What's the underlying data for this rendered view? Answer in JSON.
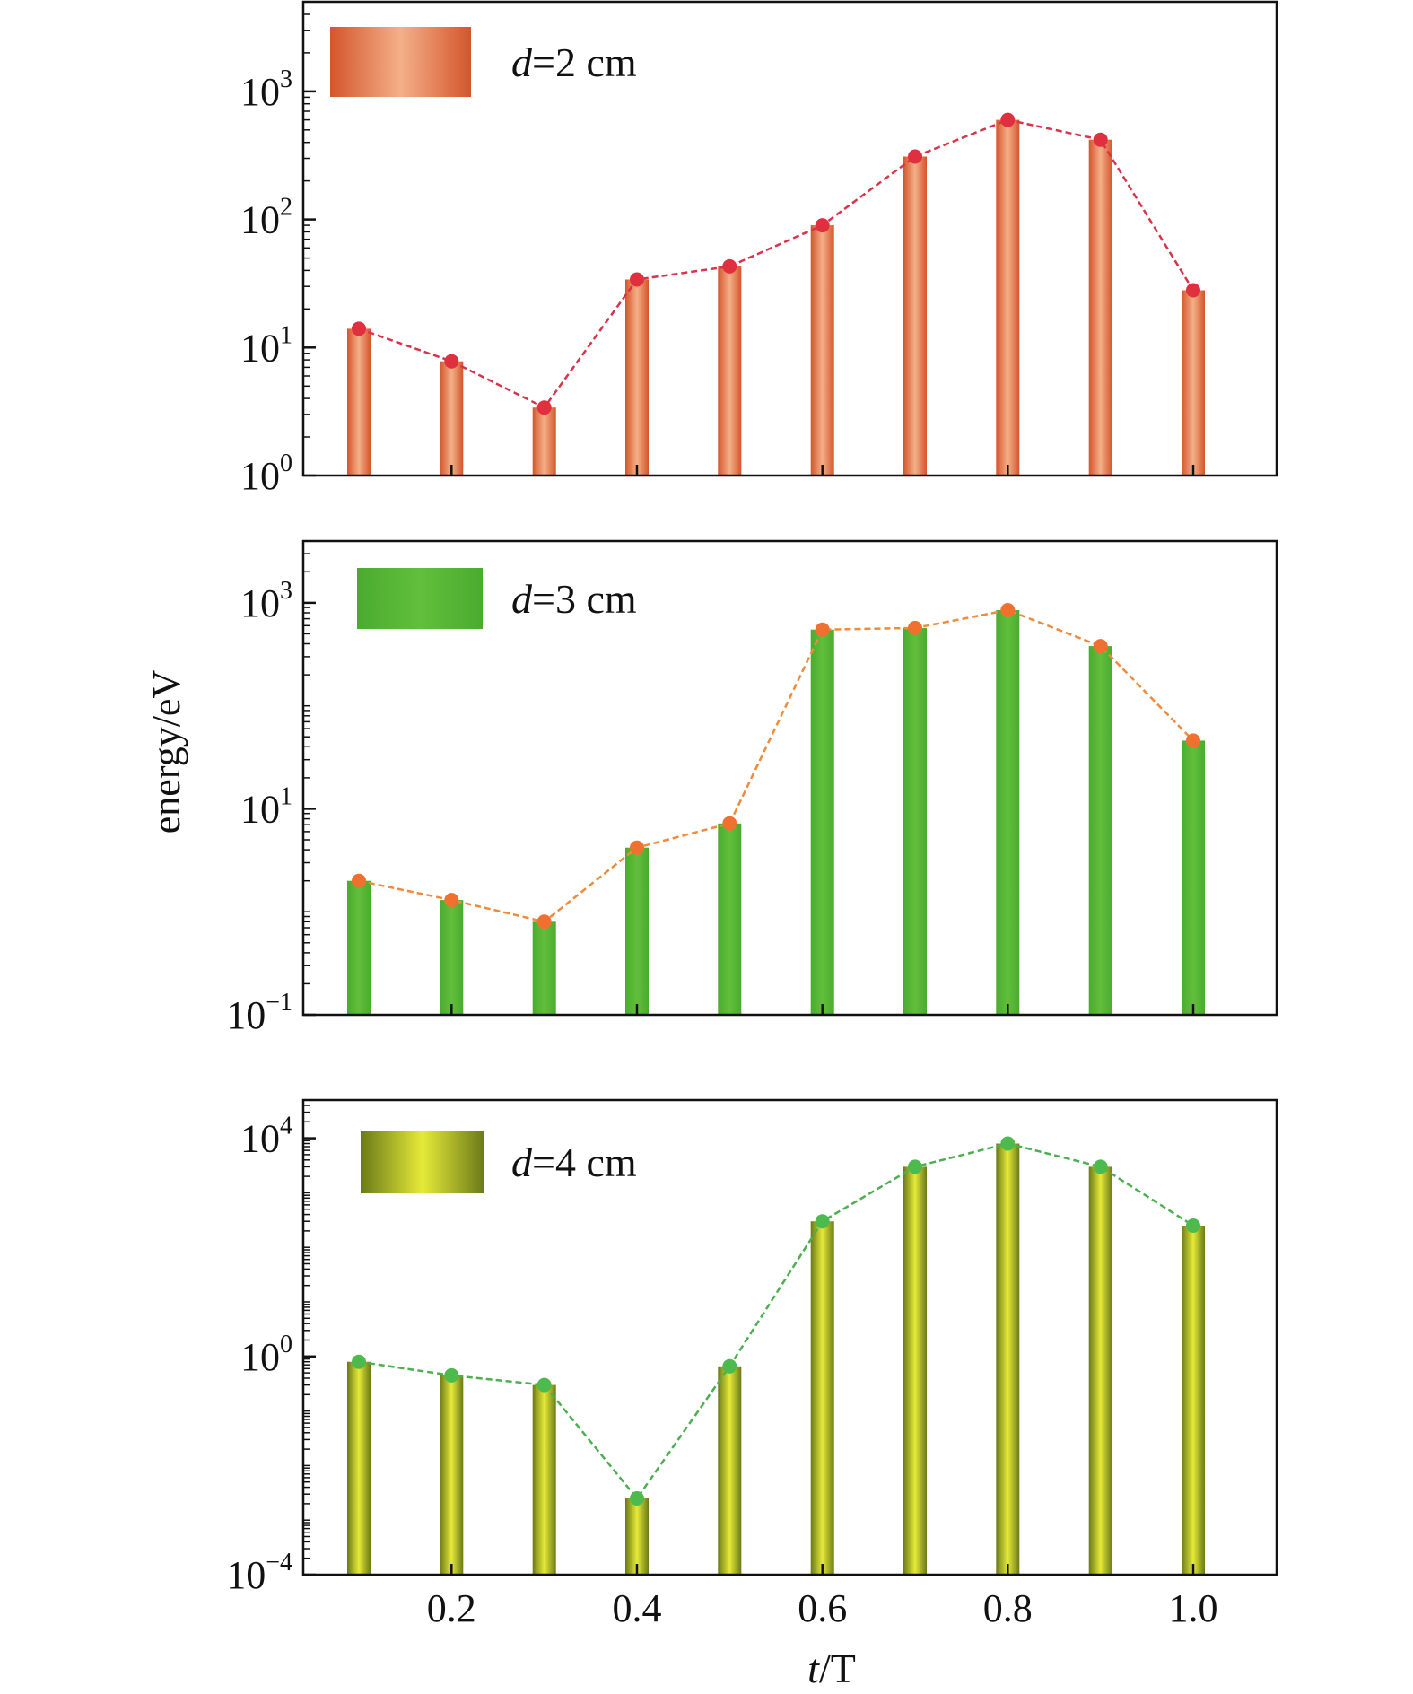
{
  "chart_data": {
    "type": "bar",
    "shared_x_label": {
      "italic": "t",
      "rest": "/T"
    },
    "shared_y_label": "energy/eV",
    "x_ticks": [
      0.2,
      0.4,
      0.6,
      0.8,
      1.0
    ],
    "x_tick_labels": [
      "0.2",
      "0.4",
      "0.6",
      "0.8",
      "1.0"
    ],
    "x_range": [
      0.04,
      1.09
    ],
    "y_scale": "log",
    "panels": [
      {
        "legend": {
          "italic": "d",
          "rest": "=2 cm"
        },
        "bar_colors": {
          "edge": "#d4552c",
          "center": "#f4b088"
        },
        "line_color": "#d8334a",
        "marker_color": "#e03040",
        "ylim_log10": [
          0,
          3.7
        ],
        "y_major_log10": [
          0,
          1,
          2,
          3
        ],
        "y_tick_labels": [
          {
            "base": "10",
            "exp": "0"
          },
          {
            "base": "10",
            "exp": "1"
          },
          {
            "base": "10",
            "exp": "2"
          },
          {
            "base": "10",
            "exp": "3"
          }
        ],
        "series": [
          {
            "x": [
              0.1,
              0.2,
              0.3,
              0.4,
              0.5,
              0.6,
              0.7,
              0.8,
              0.9,
              1.0
            ],
            "values": [
              14,
              7.8,
              3.4,
              34,
              43,
              90,
              310,
              600,
              420,
              28
            ]
          }
        ]
      },
      {
        "legend": {
          "italic": "d",
          "rest": "=3 cm"
        },
        "bar_colors": {
          "edge": "#4aab2e",
          "center": "#62bf3c"
        },
        "line_color": "#f08a3c",
        "marker_color": "#f07030",
        "ylim_log10": [
          -1,
          3.6
        ],
        "y_major_log10": [
          -1,
          1,
          3
        ],
        "y_tick_labels": [
          {
            "base": "10",
            "exp": "−1"
          },
          {
            "base": "10",
            "exp": "1"
          },
          {
            "base": "10",
            "exp": "3"
          }
        ],
        "series": [
          {
            "x": [
              0.1,
              0.2,
              0.3,
              0.4,
              0.5,
              0.6,
              0.7,
              0.8,
              0.9,
              1.0
            ],
            "values": [
              2.0,
              1.3,
              0.8,
              4.2,
              7.2,
              550,
              570,
              850,
              380,
              46
            ]
          }
        ]
      },
      {
        "legend": {
          "italic": "d",
          "rest": "=4 cm"
        },
        "bar_colors": {
          "edge": "#6a7a18",
          "center": "#e6ea38"
        },
        "line_color": "#4caf50",
        "marker_color": "#4cba4c",
        "ylim_log10": [
          -4,
          4.7
        ],
        "y_major_log10": [
          -4,
          0,
          4
        ],
        "y_tick_labels": [
          {
            "base": "10",
            "exp": "−4"
          },
          {
            "base": "10",
            "exp": "0"
          },
          {
            "base": "10",
            "exp": "4"
          }
        ],
        "series": [
          {
            "x": [
              0.1,
              0.2,
              0.3,
              0.4,
              0.5,
              0.6,
              0.7,
              0.8,
              0.9,
              1.0
            ],
            "values": [
              0.8,
              0.45,
              0.3,
              0.0025,
              0.66,
              300,
              3000,
              8000,
              3000,
              250
            ]
          }
        ]
      }
    ]
  }
}
